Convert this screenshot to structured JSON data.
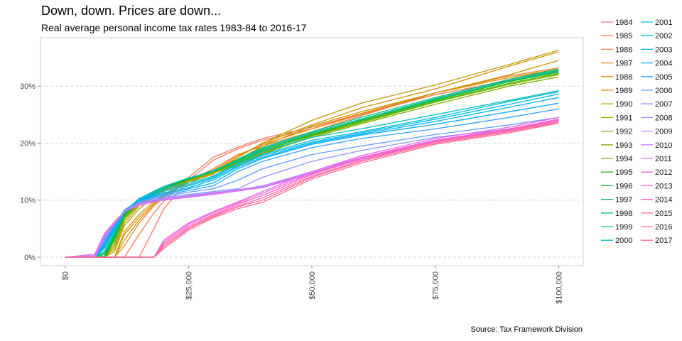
{
  "header": {
    "title": "Down, down. Prices are down...",
    "subtitle": "Real average personal income tax rates 1983-84 to 2016-17"
  },
  "footer": {
    "source": "Source: Tax Framework Division"
  },
  "chart_data": {
    "type": "line",
    "title": "Down, down. Prices are down...",
    "subtitle": "Real average personal income tax rates 1983-84 to 2016-17",
    "xlabel": "",
    "ylabel": "",
    "xlim": [
      -5000,
      105000
    ],
    "ylim": [
      -1.5,
      38.5
    ],
    "x_ticks": [
      0,
      25000,
      50000,
      75000,
      100000
    ],
    "x_tick_labels": [
      "$0",
      "$25,000",
      "$50,000",
      "$75,000",
      "$100,000"
    ],
    "y_ticks": [
      0,
      10,
      20,
      30
    ],
    "y_tick_labels": [
      "0%",
      "10%",
      "20%",
      "30%"
    ],
    "grid": "horizontal dashed",
    "legend_position": "right",
    "x": [
      0,
      6000,
      8000,
      10000,
      12000,
      15000,
      18000,
      20000,
      25000,
      30000,
      35000,
      40000,
      50000,
      60000,
      75000,
      90000,
      100000
    ],
    "series": [
      {
        "name": "1984",
        "color": "#F8766D",
        "values": [
          0,
          0,
          0,
          0,
          0,
          0,
          5.0,
          8.5,
          13.5,
          17.0,
          19.0,
          20.5,
          22.5,
          25.0,
          28.5,
          31.0,
          32.8
        ]
      },
      {
        "name": "1985",
        "color": "#F27D52",
        "values": [
          0,
          0,
          0,
          0,
          0,
          4.0,
          7.8,
          9.8,
          14.0,
          17.5,
          19.3,
          20.8,
          22.8,
          25.2,
          28.5,
          31.0,
          32.6
        ]
      },
      {
        "name": "1986",
        "color": "#EA8331",
        "values": [
          0,
          0,
          0,
          0,
          2.0,
          6.0,
          9.0,
          10.5,
          13.3,
          15.5,
          18.0,
          19.5,
          22.0,
          24.8,
          28.8,
          31.8,
          33.2
        ]
      },
      {
        "name": "1987",
        "color": "#E18A00",
        "values": [
          0,
          0,
          0,
          0,
          3.0,
          6.5,
          9.3,
          10.7,
          13.3,
          15.2,
          17.8,
          19.8,
          22.5,
          25.2,
          28.8,
          31.5,
          33.0
        ]
      },
      {
        "name": "1988",
        "color": "#D89000",
        "values": [
          0,
          0,
          0,
          0,
          4.0,
          7.0,
          9.5,
          10.9,
          13.4,
          15.0,
          17.5,
          20.0,
          23.2,
          26.2,
          29.5,
          33.5,
          36.0
        ]
      },
      {
        "name": "1989",
        "color": "#CD9600",
        "values": [
          0,
          0,
          0,
          0,
          4.5,
          7.5,
          9.8,
          11.0,
          13.0,
          14.8,
          17.0,
          19.5,
          23.0,
          25.5,
          28.8,
          32.0,
          34.5
        ]
      },
      {
        "name": "1990",
        "color": "#C09B00",
        "values": [
          0,
          0,
          0,
          1.0,
          5.5,
          8.5,
          10.5,
          11.5,
          13.3,
          14.5,
          17.5,
          20.0,
          24.0,
          27.0,
          30.2,
          33.8,
          36.3
        ]
      },
      {
        "name": "1991",
        "color": "#B2A000",
        "values": [
          0,
          0,
          0,
          1.5,
          6.0,
          9.0,
          10.8,
          11.7,
          13.3,
          14.7,
          16.5,
          18.5,
          21.5,
          24.0,
          27.5,
          30.8,
          32.5
        ]
      },
      {
        "name": "1992",
        "color": "#A3A500",
        "values": [
          0,
          0,
          0,
          2.0,
          6.5,
          9.2,
          10.9,
          11.8,
          13.4,
          14.8,
          16.0,
          18.0,
          21.3,
          23.8,
          27.3,
          30.5,
          32.3
        ]
      },
      {
        "name": "1993",
        "color": "#8FAA00",
        "values": [
          0,
          0,
          0,
          2.5,
          6.8,
          9.4,
          11.0,
          11.9,
          13.5,
          14.9,
          16.2,
          18.2,
          21.2,
          23.6,
          27.2,
          30.3,
          32.0
        ]
      },
      {
        "name": "1994",
        "color": "#72B000",
        "values": [
          0,
          0,
          0,
          3.0,
          7.0,
          9.5,
          11.1,
          12.0,
          13.6,
          15.0,
          16.4,
          18.3,
          21.0,
          23.4,
          26.8,
          30.0,
          31.6
        ]
      },
      {
        "name": "1995",
        "color": "#39B600",
        "values": [
          0,
          0,
          0,
          3.2,
          7.2,
          9.6,
          11.2,
          12.0,
          13.6,
          15.0,
          16.6,
          18.6,
          21.4,
          23.8,
          27.3,
          30.5,
          32.2
        ]
      },
      {
        "name": "1996",
        "color": "#00BA38",
        "values": [
          0,
          0,
          0.2,
          3.5,
          7.4,
          9.8,
          11.3,
          12.1,
          13.7,
          15.1,
          16.8,
          18.8,
          21.6,
          24.0,
          27.5,
          30.8,
          32.5
        ]
      },
      {
        "name": "1997",
        "color": "#00BC59",
        "values": [
          0,
          0,
          0.5,
          3.8,
          7.6,
          9.9,
          11.4,
          12.2,
          13.8,
          15.2,
          17.0,
          19.0,
          21.8,
          24.2,
          27.7,
          31.0,
          32.8
        ]
      },
      {
        "name": "1998",
        "color": "#00BF7D",
        "values": [
          0,
          0,
          0.8,
          4.0,
          7.8,
          10.0,
          11.5,
          12.3,
          13.8,
          15.0,
          17.2,
          19.2,
          22.0,
          24.5,
          28.0,
          31.2,
          33.0
        ]
      },
      {
        "name": "1999",
        "color": "#00C19F",
        "values": [
          0,
          0,
          1.0,
          4.2,
          8.0,
          10.2,
          11.6,
          12.4,
          13.9,
          15.0,
          17.0,
          19.0,
          21.8,
          24.2,
          27.8,
          31.0,
          32.6
        ]
      },
      {
        "name": "2000",
        "color": "#00BFC4",
        "values": [
          0,
          0,
          1.5,
          4.5,
          8.0,
          10.3,
          11.5,
          12.2,
          13.0,
          14.2,
          16.5,
          18.5,
          21.0,
          22.5,
          25.0,
          27.5,
          29.2
        ]
      },
      {
        "name": "2001",
        "color": "#00BCD8",
        "values": [
          0,
          0,
          1.8,
          4.8,
          8.1,
          10.2,
          11.3,
          11.9,
          12.7,
          14.0,
          16.3,
          18.0,
          20.5,
          22.0,
          24.5,
          27.3,
          29.0
        ]
      },
      {
        "name": "2002",
        "color": "#00B8E7",
        "values": [
          0,
          0,
          2.0,
          5.0,
          8.2,
          10.1,
          11.1,
          11.6,
          12.5,
          13.8,
          16.0,
          17.8,
          20.2,
          21.8,
          24.2,
          26.8,
          28.6
        ]
      },
      {
        "name": "2003",
        "color": "#00B0F6",
        "values": [
          0,
          0,
          2.2,
          5.2,
          8.2,
          10.0,
          10.9,
          11.3,
          12.2,
          13.5,
          15.8,
          17.5,
          20.0,
          21.6,
          23.8,
          26.3,
          28.0
        ]
      },
      {
        "name": "2004",
        "color": "#00A9FF",
        "values": [
          0,
          0,
          2.5,
          5.4,
          8.3,
          9.9,
          10.7,
          11.1,
          12.0,
          13.0,
          15.5,
          17.3,
          19.8,
          21.4,
          23.3,
          25.5,
          27.0
        ]
      },
      {
        "name": "2005",
        "color": "#35A2FF",
        "values": [
          0,
          0,
          2.8,
          5.6,
          8.3,
          9.8,
          10.5,
          10.9,
          11.7,
          12.5,
          15.0,
          16.8,
          19.2,
          20.8,
          22.5,
          24.5,
          26.0
        ]
      },
      {
        "name": "2006",
        "color": "#619CFF",
        "values": [
          0,
          0,
          3.0,
          5.7,
          8.2,
          9.6,
          10.3,
          10.7,
          11.4,
          12.0,
          13.5,
          15.5,
          18.0,
          19.5,
          21.5,
          23.2,
          24.5
        ]
      },
      {
        "name": "2007",
        "color": "#8B93FF",
        "values": [
          0,
          0,
          3.2,
          5.8,
          8.1,
          9.5,
          10.1,
          10.5,
          11.0,
          11.5,
          12.0,
          14.0,
          16.8,
          18.7,
          21.0,
          22.5,
          23.5
        ]
      },
      {
        "name": "2008",
        "color": "#A58AFF",
        "values": [
          0,
          0,
          3.5,
          5.9,
          8.0,
          9.4,
          10.0,
          10.3,
          10.8,
          11.3,
          11.8,
          12.5,
          15.0,
          17.5,
          20.5,
          22.5,
          24.0
        ]
      },
      {
        "name": "2009",
        "color": "#BF80FF",
        "values": [
          0,
          0.1,
          3.8,
          6.0,
          8.0,
          9.3,
          9.9,
          10.2,
          10.7,
          11.2,
          11.8,
          12.4,
          15.0,
          17.5,
          20.5,
          22.5,
          24.2
        ]
      },
      {
        "name": "2010",
        "color": "#D277FF",
        "values": [
          0,
          0.3,
          4.0,
          6.1,
          8.0,
          9.2,
          9.8,
          10.1,
          10.6,
          11.1,
          11.7,
          12.3,
          14.8,
          17.3,
          20.3,
          22.3,
          24.0
        ]
      },
      {
        "name": "2011",
        "color": "#E46DF6",
        "values": [
          0,
          0.5,
          4.2,
          6.2,
          8.0,
          9.1,
          9.7,
          10.0,
          10.5,
          11.0,
          11.6,
          12.2,
          14.6,
          17.2,
          20.2,
          22.2,
          23.8
        ]
      },
      {
        "name": "2012",
        "color": "#F066EA",
        "values": [
          0,
          0,
          0,
          0,
          0,
          0,
          0,
          3.0,
          6.0,
          8.0,
          9.7,
          11.5,
          15.0,
          17.8,
          20.8,
          22.8,
          24.5
        ]
      },
      {
        "name": "2013",
        "color": "#FA62DB",
        "values": [
          0,
          0,
          0,
          0,
          0,
          0,
          0,
          2.7,
          5.8,
          7.8,
          9.5,
          11.2,
          14.7,
          17.5,
          20.5,
          22.5,
          24.2
        ]
      },
      {
        "name": "2014",
        "color": "#FF62BC",
        "values": [
          0,
          0,
          0,
          0,
          0,
          0,
          0,
          2.4,
          5.5,
          7.5,
          9.3,
          10.8,
          14.5,
          17.3,
          20.4,
          22.4,
          24.0
        ]
      },
      {
        "name": "2015",
        "color": "#FF65AE",
        "values": [
          0,
          0,
          0,
          0,
          0,
          0,
          0,
          2.1,
          5.2,
          7.3,
          9.0,
          10.4,
          14.2,
          17.0,
          20.2,
          22.2,
          23.8
        ]
      },
      {
        "name": "2016",
        "color": "#FF6A98",
        "values": [
          0,
          0,
          0,
          0,
          0,
          0,
          0,
          1.8,
          5.0,
          7.1,
          8.8,
          10.0,
          14.0,
          16.8,
          20.0,
          22.0,
          23.6
        ]
      },
      {
        "name": "2017",
        "color": "#FF6C91",
        "values": [
          0,
          0,
          0,
          0,
          0,
          0,
          0,
          1.5,
          4.7,
          6.9,
          8.5,
          9.6,
          13.7,
          16.5,
          19.8,
          21.8,
          23.5
        ]
      }
    ]
  }
}
